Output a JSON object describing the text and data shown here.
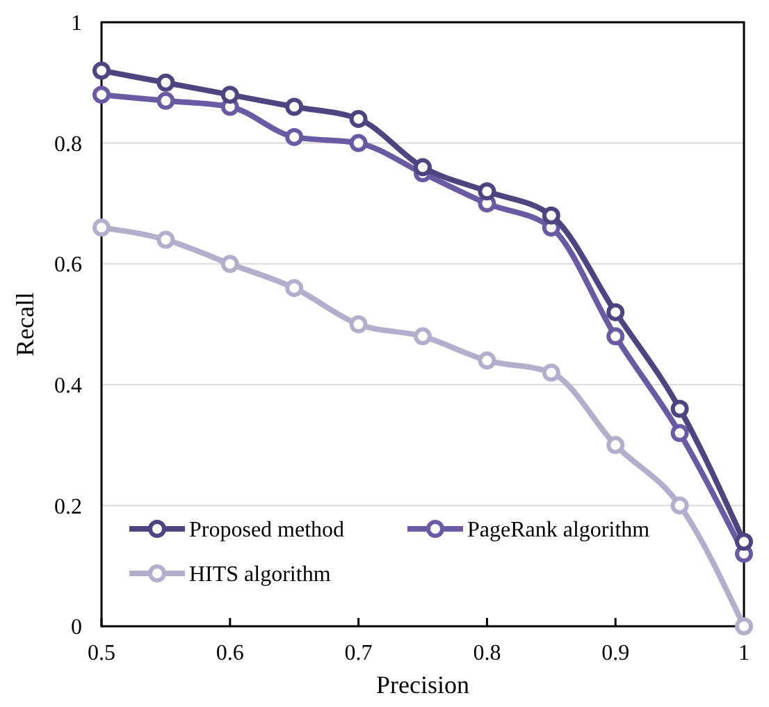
{
  "chart_data": {
    "type": "line",
    "xlabel": "Precision",
    "ylabel": "Recall",
    "x": [
      0.5,
      0.55,
      0.6,
      0.65,
      0.7,
      0.75,
      0.8,
      0.85,
      0.9,
      0.95,
      1
    ],
    "xlim": [
      0.5,
      1
    ],
    "xticks": [
      0.5,
      0.6,
      0.7,
      0.8,
      0.9,
      1
    ],
    "ylim": [
      0,
      1
    ],
    "yticks": [
      0,
      0.2,
      0.4,
      0.6,
      0.8,
      1
    ],
    "grid": "y",
    "legend": "bottom left",
    "marker": "circle",
    "line_style": "solid",
    "series": [
      {
        "name": "Proposed method",
        "color": "#4e4580",
        "values": [
          0.92,
          0.9,
          0.88,
          0.86,
          0.84,
          0.76,
          0.72,
          0.68,
          0.52,
          0.36,
          0.14
        ]
      },
      {
        "name": "PageRank algorithm",
        "color": "#6a5aa3",
        "values": [
          0.88,
          0.87,
          0.86,
          0.81,
          0.8,
          0.75,
          0.7,
          0.66,
          0.48,
          0.32,
          0.12
        ]
      },
      {
        "name": "HITS algorithm",
        "color": "#b3aecb",
        "values": [
          0.66,
          0.64,
          0.6,
          0.56,
          0.5,
          0.48,
          0.44,
          0.42,
          0.3,
          0.2,
          0
        ]
      }
    ]
  }
}
